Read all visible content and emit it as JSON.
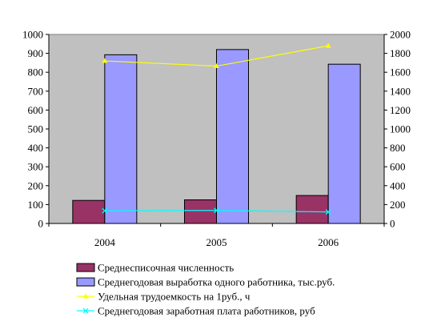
{
  "chart_data": {
    "type": "bar",
    "categories": [
      "2004",
      "2005",
      "2006"
    ],
    "y_left": {
      "ylim": [
        0,
        1000
      ],
      "ticks": [
        "0",
        "100",
        "200",
        "300",
        "400",
        "500",
        "600",
        "700",
        "800",
        "900",
        "1000"
      ]
    },
    "y_right": {
      "ylim": [
        0,
        2000
      ],
      "ticks": [
        "0",
        "200",
        "400",
        "600",
        "800",
        "1000",
        "1200",
        "1400",
        "1600",
        "1800",
        "2000"
      ]
    },
    "grid": false,
    "legend_placement": "bottom",
    "series": [
      {
        "name": "Среднесписочная численность",
        "kind": "bar",
        "axis": "left",
        "values": [
          122,
          125,
          148
        ],
        "color": "#993366",
        "marker": "square"
      },
      {
        "name": "Среднегодовая выработка одного работника, тыс.руб.",
        "kind": "bar",
        "axis": "right",
        "values": [
          1785,
          1840,
          1685
        ],
        "color": "#9999FF",
        "marker": "square"
      },
      {
        "name": "Удельная трудоемкость на 1руб., ч",
        "kind": "line",
        "axis": "right",
        "values": [
          1720,
          1665,
          1880
        ],
        "color": "#FFFF00",
        "marker": "triangle"
      },
      {
        "name": "Среднегодовая заработная плата работников, руб",
        "kind": "line",
        "axis": "right",
        "values": [
          135,
          138,
          122
        ],
        "color": "#00FFFF",
        "marker": "x"
      }
    ],
    "plot_background": "#C0C0C0"
  }
}
